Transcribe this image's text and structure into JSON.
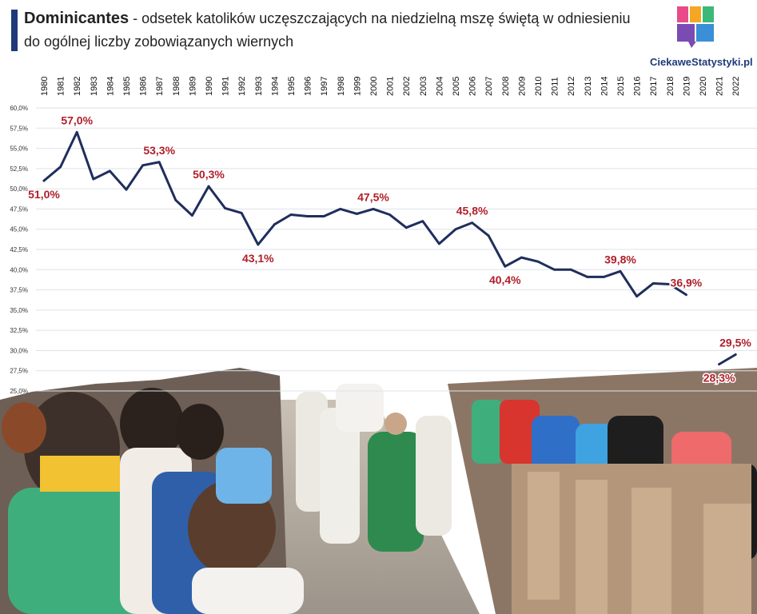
{
  "header": {
    "title_bold": "Dominicantes",
    "title_rest": " - odsetek katolików uczęszczających na niedzielną mszę świętą w odniesieniu",
    "title_line2": "do ogólnej liczby zobowiązanych wiernych"
  },
  "logo": {
    "text": "CiekaweStatystyki.pl",
    "colors": [
      "#e84a8a",
      "#f6a623",
      "#3cb878",
      "#3a8fd6",
      "#7b4bb4"
    ]
  },
  "colors": {
    "line": "#1f2e5c",
    "label": "#b01e2a",
    "grid": "#dde3ea",
    "accent": "#1f3a7a"
  },
  "chart_data": {
    "type": "line",
    "title": "Dominicantes - odsetek katolików uczęszczających na niedzielną mszę świętą w odniesieniu do ogólnej liczby zobowiązanych wiernych",
    "xlabel": "",
    "ylabel": "",
    "ylim": [
      25,
      60
    ],
    "y_unit": "%",
    "grid": true,
    "x": [
      "1980",
      "1981",
      "1982",
      "1983",
      "1984",
      "1985",
      "1986",
      "1987",
      "1988",
      "1989",
      "1990",
      "1991",
      "1992",
      "1993",
      "1994",
      "1995",
      "1996",
      "1997",
      "1998",
      "1999",
      "2000",
      "2001",
      "2002",
      "2003",
      "2004",
      "2005",
      "2006",
      "2007",
      "2008",
      "2009",
      "2010",
      "2011",
      "2012",
      "2013",
      "2014",
      "2015",
      "2016",
      "2017",
      "2018",
      "2019",
      "2020",
      "2021",
      "2022"
    ],
    "series": [
      {
        "values": [
          51.0,
          52.7,
          57.0,
          51.2,
          52.2,
          49.9,
          52.9,
          53.3,
          48.6,
          46.7,
          50.3,
          47.6,
          47.0,
          43.1,
          45.6,
          46.8,
          46.6,
          46.6,
          47.5,
          46.9,
          47.5,
          46.8,
          45.2,
          46.0,
          43.2,
          45.0,
          45.8,
          44.2,
          40.4,
          41.5,
          41.0,
          40.0,
          40.0,
          39.1,
          39.1,
          39.8,
          36.7,
          38.3,
          38.2,
          36.9,
          null,
          28.3,
          29.5
        ]
      }
    ],
    "yticks": [
      "25,0%",
      "27,5%",
      "30,0%",
      "32,5%",
      "35,0%",
      "37,5%",
      "40,0%",
      "42,5%",
      "45,0%",
      "47,5%",
      "50,0%",
      "52,5%",
      "55,0%",
      "57,5%",
      "60,0%"
    ],
    "ytick_values": [
      25,
      27.5,
      30,
      32.5,
      35,
      37.5,
      40,
      42.5,
      45,
      47.5,
      50,
      52.5,
      55,
      57.5,
      60
    ],
    "annotations": [
      {
        "x": "1980",
        "text": "51,0%",
        "pos": "below"
      },
      {
        "x": "1982",
        "text": "57,0%",
        "pos": "above"
      },
      {
        "x": "1987",
        "text": "53,3%",
        "pos": "above"
      },
      {
        "x": "1990",
        "text": "50,3%",
        "pos": "above"
      },
      {
        "x": "1993",
        "text": "43,1%",
        "pos": "below"
      },
      {
        "x": "2000",
        "text": "47,5%",
        "pos": "above"
      },
      {
        "x": "2006",
        "text": "45,8%",
        "pos": "above"
      },
      {
        "x": "2008",
        "text": "40,4%",
        "pos": "below"
      },
      {
        "x": "2015",
        "text": "39,8%",
        "pos": "above"
      },
      {
        "x": "2019",
        "text": "36,9%",
        "pos": "above"
      },
      {
        "x": "2021",
        "text": "28,3%",
        "pos": "below"
      },
      {
        "x": "2022",
        "text": "29,5%",
        "pos": "above"
      }
    ]
  }
}
